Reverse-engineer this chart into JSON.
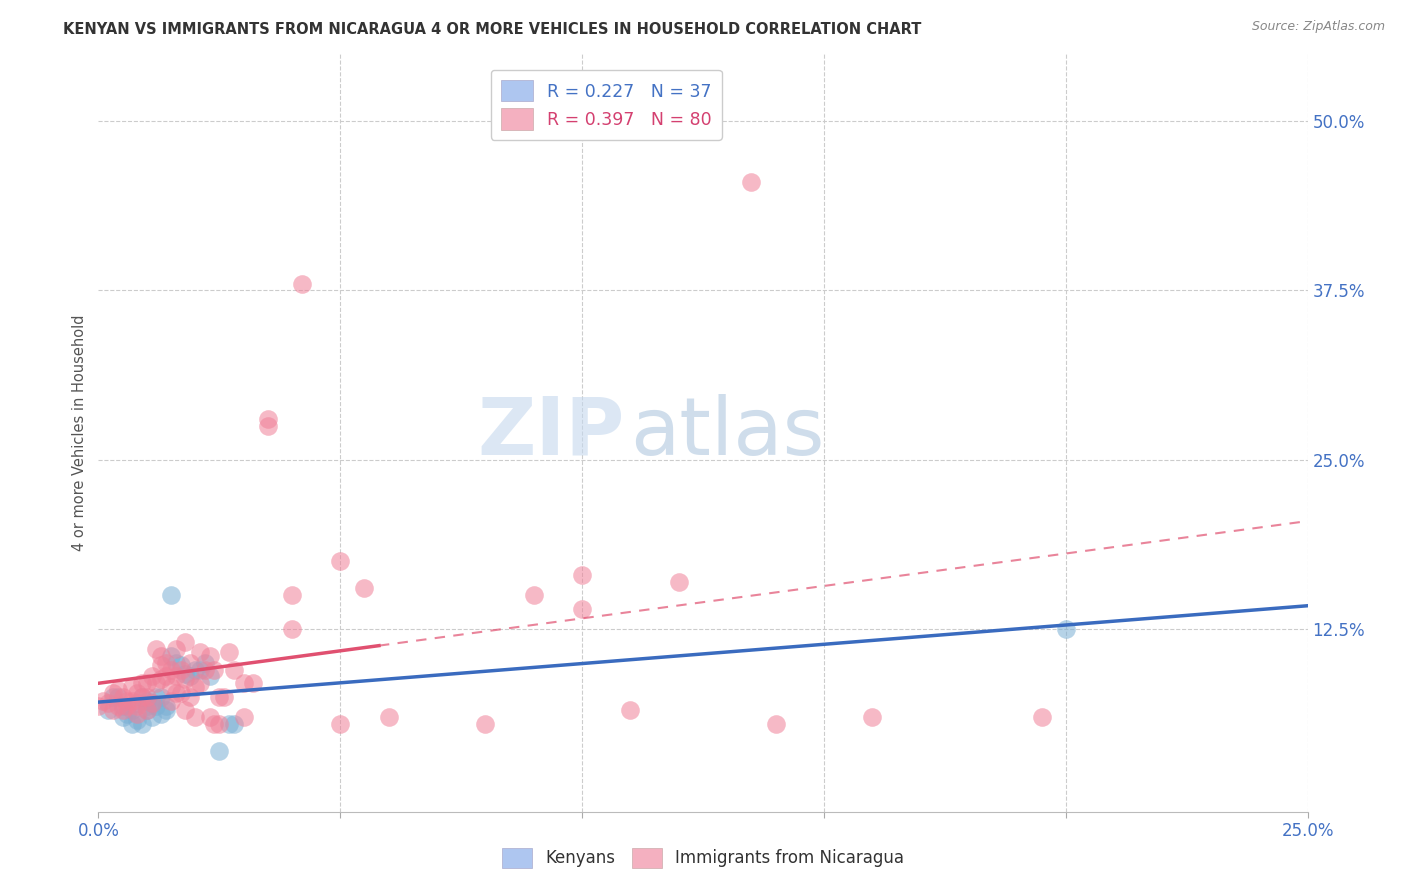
{
  "title": "KENYAN VS IMMIGRANTS FROM NICARAGUA 4 OR MORE VEHICLES IN HOUSEHOLD CORRELATION CHART",
  "source": "Source: ZipAtlas.com",
  "ylabel": "4 or more Vehicles in Household",
  "xlim": [
    0.0,
    0.25
  ],
  "ylim": [
    -0.01,
    0.55
  ],
  "x_ticks": [
    0.0,
    0.05,
    0.1,
    0.15,
    0.2,
    0.25
  ],
  "x_tick_labels": [
    "0.0%",
    "",
    "",
    "",
    "",
    "25.0%"
  ],
  "y_ticks_right": [
    0.0,
    0.125,
    0.25,
    0.375,
    0.5
  ],
  "y_tick_labels_right": [
    "",
    "12.5%",
    "25.0%",
    "37.5%",
    "50.0%"
  ],
  "watermark_zip": "ZIP",
  "watermark_atlas": "atlas",
  "background_color": "#ffffff",
  "grid_color": "#cccccc",
  "kenyan_color": "#7bafd4",
  "nicaragua_color": "#f08098",
  "kenyan_trend_color": "#3a6bbf",
  "nicaragua_trend_color": "#e05070",
  "kenyan_scatter": [
    [
      0.002,
      0.065
    ],
    [
      0.003,
      0.075
    ],
    [
      0.004,
      0.075
    ],
    [
      0.005,
      0.068
    ],
    [
      0.005,
      0.06
    ],
    [
      0.006,
      0.062
    ],
    [
      0.007,
      0.055
    ],
    [
      0.007,
      0.065
    ],
    [
      0.008,
      0.07
    ],
    [
      0.008,
      0.058
    ],
    [
      0.009,
      0.055
    ],
    [
      0.009,
      0.075
    ],
    [
      0.01,
      0.068
    ],
    [
      0.01,
      0.065
    ],
    [
      0.01,
      0.072
    ],
    [
      0.011,
      0.07
    ],
    [
      0.011,
      0.06
    ],
    [
      0.012,
      0.068
    ],
    [
      0.012,
      0.075
    ],
    [
      0.013,
      0.062
    ],
    [
      0.013,
      0.075
    ],
    [
      0.014,
      0.065
    ],
    [
      0.014,
      0.068
    ],
    [
      0.015,
      0.15
    ],
    [
      0.015,
      0.105
    ],
    [
      0.016,
      0.1
    ],
    [
      0.017,
      0.098
    ],
    [
      0.018,
      0.092
    ],
    [
      0.019,
      0.09
    ],
    [
      0.02,
      0.095
    ],
    [
      0.021,
      0.095
    ],
    [
      0.022,
      0.1
    ],
    [
      0.023,
      0.09
    ],
    [
      0.025,
      0.035
    ],
    [
      0.027,
      0.055
    ],
    [
      0.028,
      0.055
    ],
    [
      0.2,
      0.125
    ]
  ],
  "nicaragua_scatter": [
    [
      0.0,
      0.068
    ],
    [
      0.001,
      0.072
    ],
    [
      0.002,
      0.07
    ],
    [
      0.003,
      0.078
    ],
    [
      0.003,
      0.065
    ],
    [
      0.004,
      0.08
    ],
    [
      0.004,
      0.068
    ],
    [
      0.005,
      0.075
    ],
    [
      0.005,
      0.065
    ],
    [
      0.006,
      0.072
    ],
    [
      0.006,
      0.068
    ],
    [
      0.007,
      0.082
    ],
    [
      0.007,
      0.072
    ],
    [
      0.008,
      0.078
    ],
    [
      0.008,
      0.068
    ],
    [
      0.008,
      0.062
    ],
    [
      0.009,
      0.085
    ],
    [
      0.009,
      0.075
    ],
    [
      0.01,
      0.085
    ],
    [
      0.01,
      0.075
    ],
    [
      0.01,
      0.065
    ],
    [
      0.011,
      0.09
    ],
    [
      0.011,
      0.07
    ],
    [
      0.012,
      0.11
    ],
    [
      0.012,
      0.085
    ],
    [
      0.013,
      0.105
    ],
    [
      0.013,
      0.098
    ],
    [
      0.013,
      0.088
    ],
    [
      0.014,
      0.1
    ],
    [
      0.014,
      0.09
    ],
    [
      0.015,
      0.095
    ],
    [
      0.015,
      0.082
    ],
    [
      0.015,
      0.072
    ],
    [
      0.016,
      0.11
    ],
    [
      0.016,
      0.09
    ],
    [
      0.016,
      0.078
    ],
    [
      0.017,
      0.095
    ],
    [
      0.017,
      0.078
    ],
    [
      0.018,
      0.115
    ],
    [
      0.018,
      0.088
    ],
    [
      0.018,
      0.065
    ],
    [
      0.019,
      0.1
    ],
    [
      0.019,
      0.075
    ],
    [
      0.02,
      0.082
    ],
    [
      0.02,
      0.06
    ],
    [
      0.021,
      0.108
    ],
    [
      0.021,
      0.085
    ],
    [
      0.022,
      0.095
    ],
    [
      0.023,
      0.105
    ],
    [
      0.023,
      0.06
    ],
    [
      0.024,
      0.095
    ],
    [
      0.024,
      0.055
    ],
    [
      0.025,
      0.075
    ],
    [
      0.025,
      0.055
    ],
    [
      0.026,
      0.075
    ],
    [
      0.027,
      0.108
    ],
    [
      0.028,
      0.095
    ],
    [
      0.03,
      0.085
    ],
    [
      0.03,
      0.06
    ],
    [
      0.032,
      0.085
    ],
    [
      0.035,
      0.275
    ],
    [
      0.035,
      0.28
    ],
    [
      0.04,
      0.15
    ],
    [
      0.04,
      0.125
    ],
    [
      0.042,
      0.38
    ],
    [
      0.05,
      0.175
    ],
    [
      0.05,
      0.055
    ],
    [
      0.055,
      0.155
    ],
    [
      0.06,
      0.06
    ],
    [
      0.08,
      0.055
    ],
    [
      0.09,
      0.15
    ],
    [
      0.1,
      0.165
    ],
    [
      0.1,
      0.14
    ],
    [
      0.11,
      0.065
    ],
    [
      0.12,
      0.16
    ],
    [
      0.135,
      0.455
    ],
    [
      0.14,
      0.055
    ],
    [
      0.16,
      0.06
    ],
    [
      0.195,
      0.06
    ]
  ]
}
